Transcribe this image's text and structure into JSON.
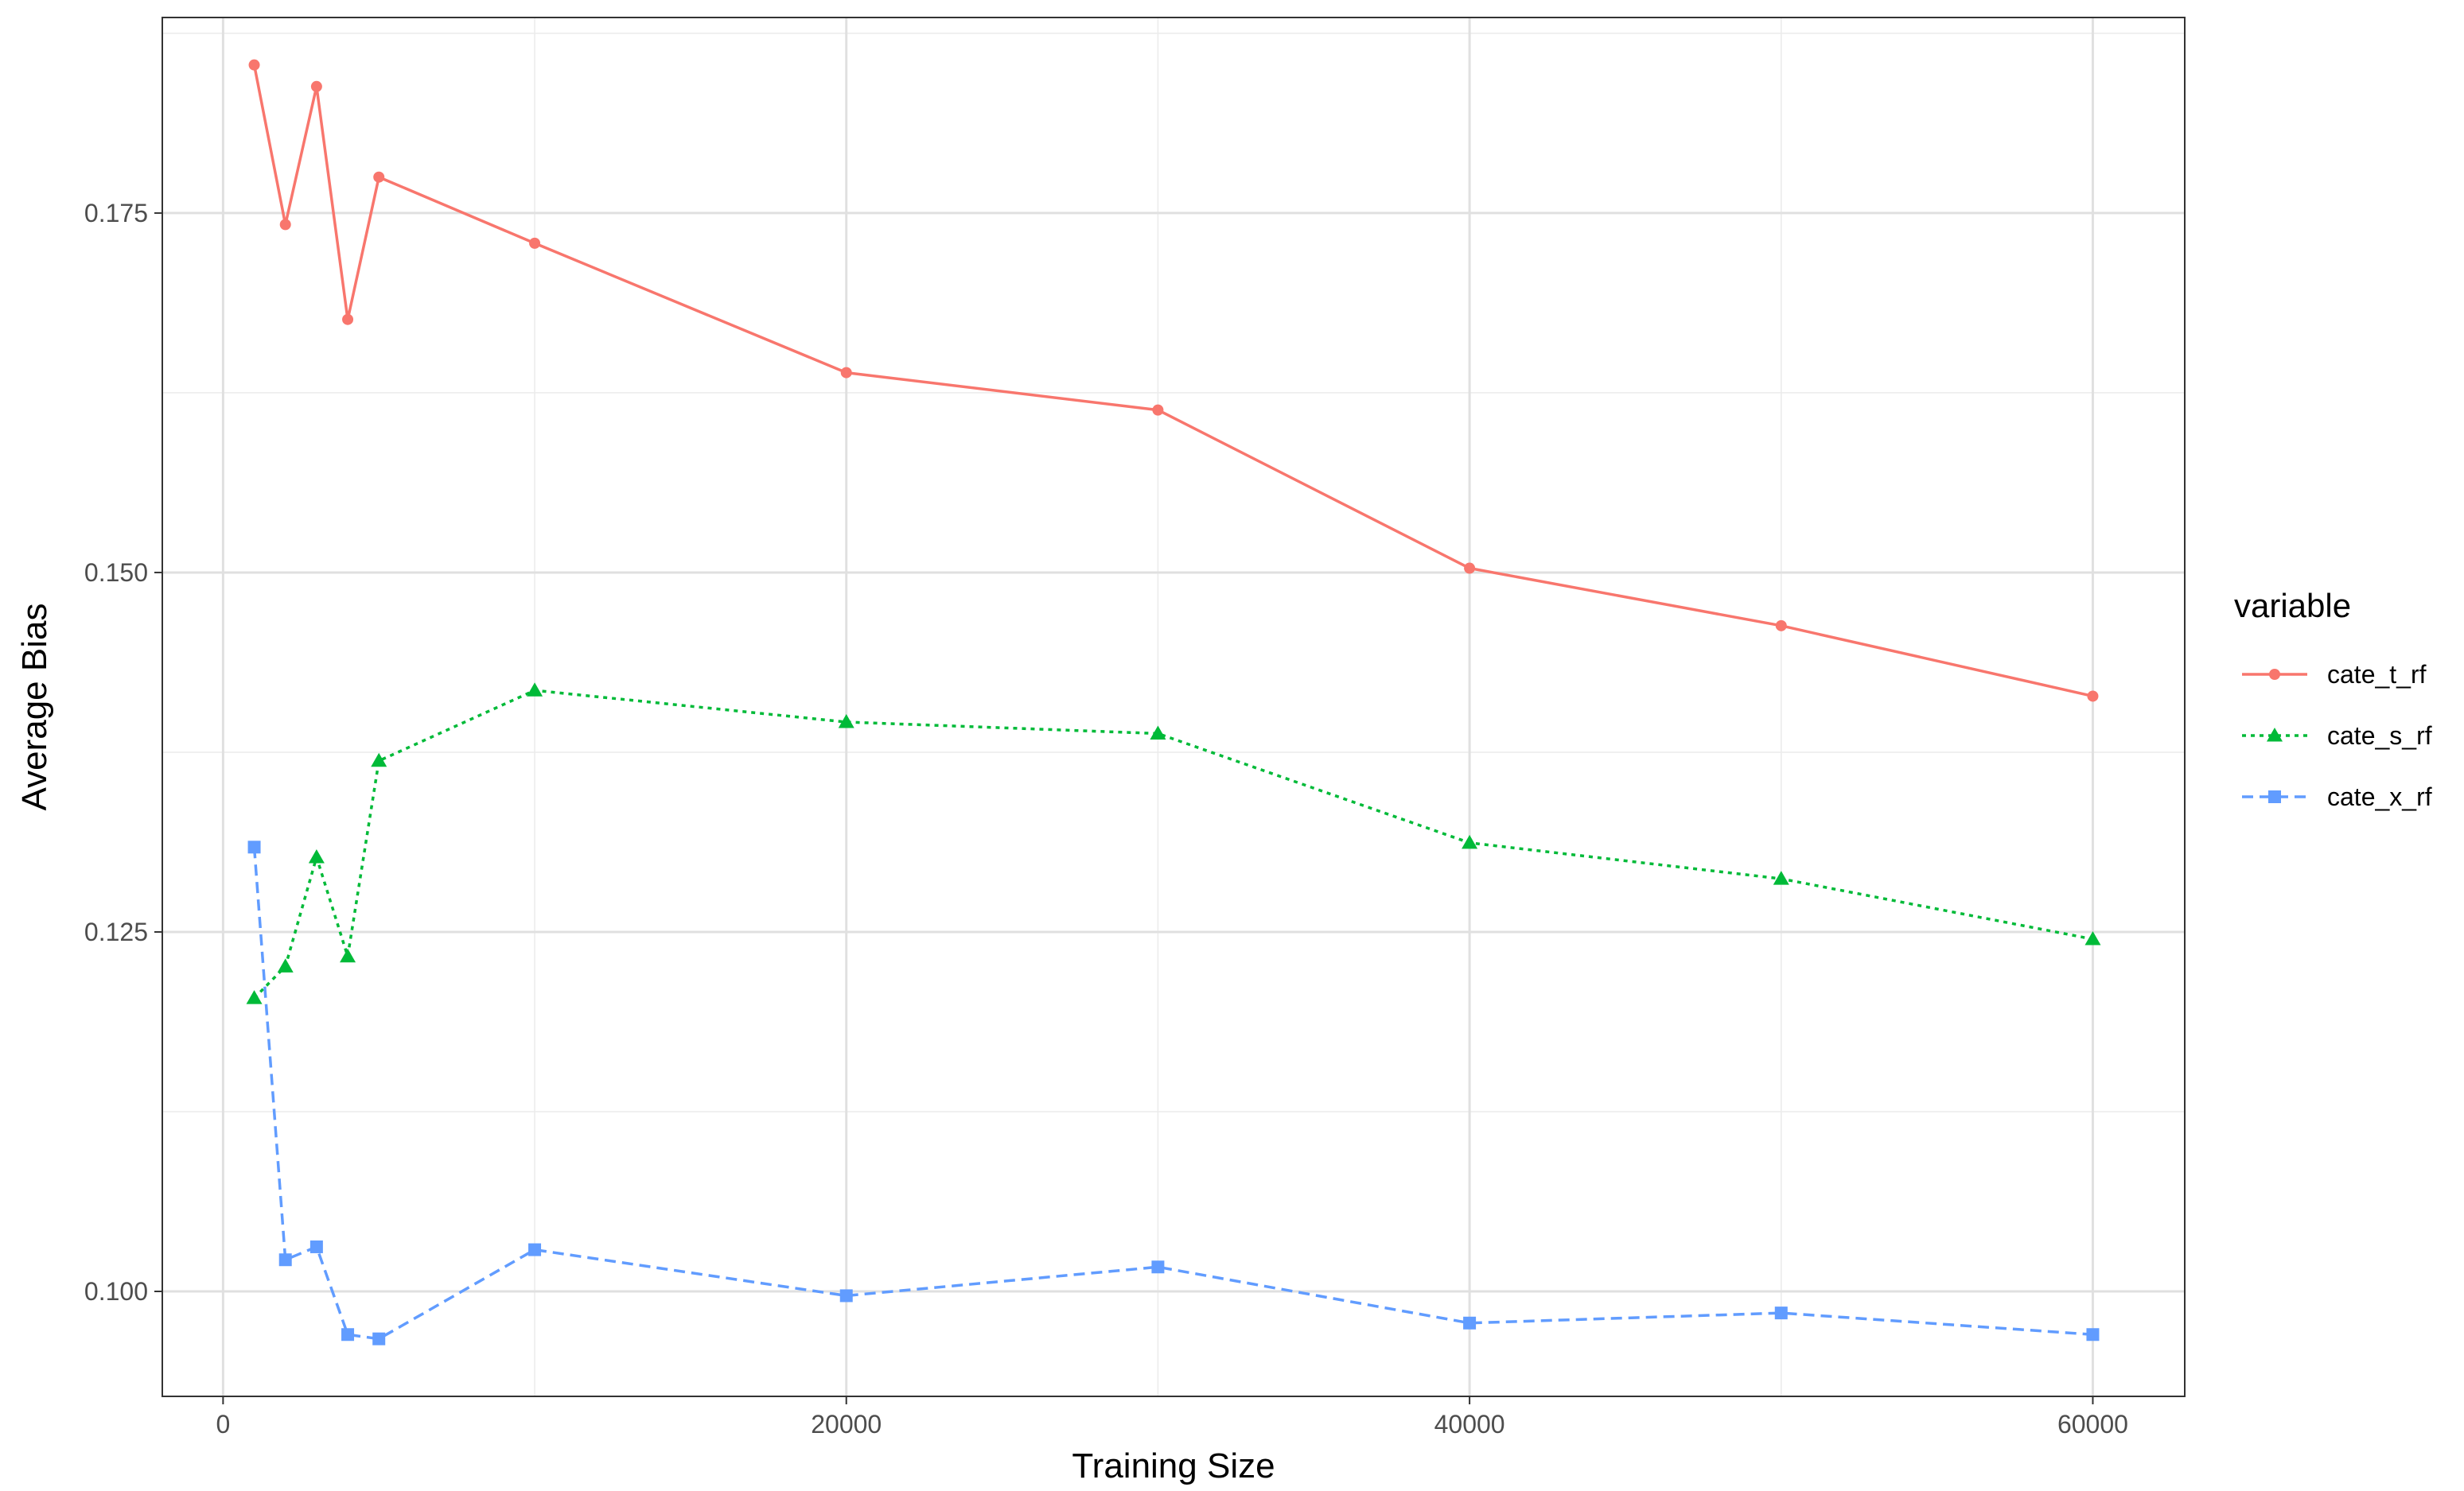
{
  "chart_data": {
    "type": "line",
    "title": "",
    "xlabel": "Training Size",
    "ylabel": "Average Bias",
    "xlim": [
      -1950,
      62950
    ],
    "ylim": [
      0.0927,
      0.1886
    ],
    "xticks": [
      0,
      20000,
      40000,
      60000
    ],
    "xtick_labels": [
      "0",
      "20000",
      "40000",
      "60000"
    ],
    "yticks": [
      0.1,
      0.125,
      0.15,
      0.175
    ],
    "ytick_labels": [
      "0.100",
      "0.125",
      "0.150",
      "0.175"
    ],
    "grid": true,
    "legend": {
      "title": "variable",
      "position": "right"
    },
    "x": [
      1000,
      2000,
      3000,
      4000,
      5000,
      10000,
      20000,
      30000,
      40000,
      50000,
      60000
    ],
    "series": [
      {
        "name": "cate_t_rf",
        "color": "#F8766D",
        "marker": "circle",
        "linestyle": "solid",
        "values": [
          0.1853,
          0.1742,
          0.1838,
          0.1676,
          0.1775,
          0.1729,
          0.1639,
          0.1613,
          0.1503,
          0.1463,
          0.1414
        ]
      },
      {
        "name": "cate_s_rf",
        "color": "#00BA38",
        "marker": "triangle",
        "linestyle": "dotted",
        "values": [
          0.1204,
          0.1226,
          0.1302,
          0.1233,
          0.1369,
          0.1418,
          0.1396,
          0.1388,
          0.1312,
          0.1287,
          0.1245
        ]
      },
      {
        "name": "cate_x_rf",
        "color": "#619CFF",
        "marker": "square",
        "linestyle": "dashed",
        "values": [
          0.1309,
          0.1022,
          0.1031,
          0.097,
          0.0967,
          0.1029,
          0.0997,
          0.1017,
          0.0978,
          0.0985,
          0.097
        ]
      }
    ]
  }
}
